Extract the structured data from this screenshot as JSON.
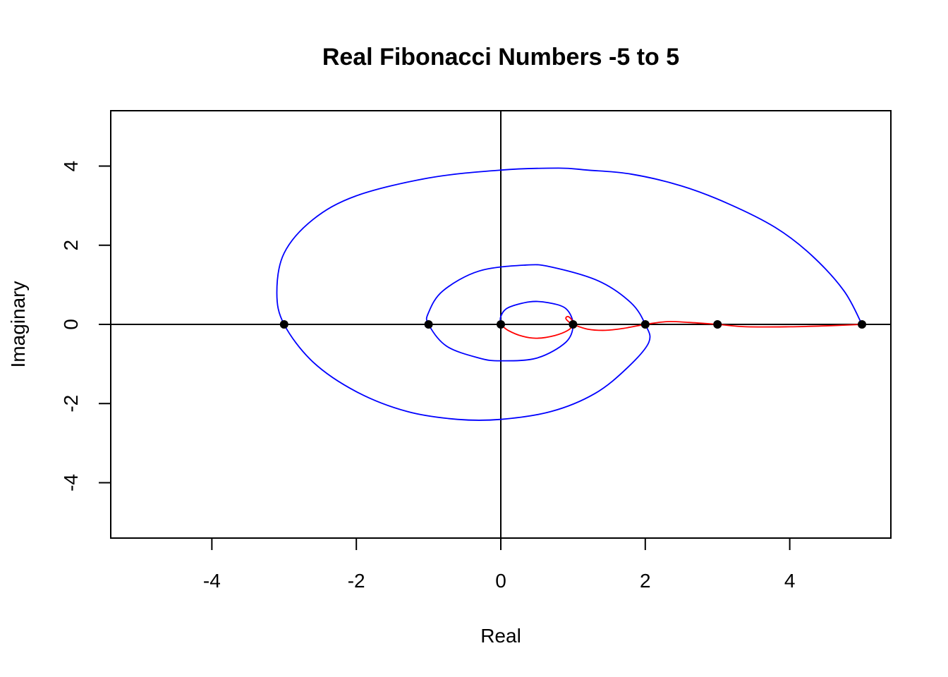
{
  "chart_data": {
    "type": "line",
    "title": "Real Fibonacci Numbers -5 to 5",
    "xlabel": "Real",
    "ylabel": "Imaginary",
    "xlim": [
      -5.4,
      5.4
    ],
    "ylim": [
      -5.4,
      5.4
    ],
    "xticks": [
      -4,
      -2,
      0,
      2,
      4
    ],
    "yticks": [
      -4,
      -2,
      0,
      2,
      4
    ],
    "grid": false,
    "legend": "none",
    "reference_lines": {
      "x": 0,
      "y": 0
    },
    "colors": {
      "blue_curve": "#0000ff",
      "red_curve": "#ff0000",
      "points": "#000000",
      "axes": "#000000"
    },
    "points": [
      {
        "x": -3,
        "y": 0
      },
      {
        "x": -1,
        "y": 0
      },
      {
        "x": 0,
        "y": 0
      },
      {
        "x": 1,
        "y": 0
      },
      {
        "x": 2,
        "y": 0
      },
      {
        "x": 3,
        "y": 0
      },
      {
        "x": 5,
        "y": 0
      }
    ],
    "series": [
      {
        "color": "#0000ff",
        "points": [
          [
            5.0,
            0.0
          ],
          [
            4.75,
            0.85
          ],
          [
            4.3,
            1.75
          ],
          [
            3.8,
            2.45
          ],
          [
            3.15,
            3.05
          ],
          [
            2.5,
            3.5
          ],
          [
            1.8,
            3.8
          ],
          [
            1.2,
            3.9
          ],
          [
            0.8,
            3.95
          ],
          [
            0.0,
            3.9
          ],
          [
            -1.0,
            3.7
          ],
          [
            -2.0,
            3.25
          ],
          [
            -2.6,
            2.65
          ],
          [
            -3.0,
            1.8
          ],
          [
            -3.1,
            0.8
          ],
          [
            -3.0,
            0.0
          ],
          [
            -2.6,
            -0.95
          ],
          [
            -2.0,
            -1.7
          ],
          [
            -1.3,
            -2.2
          ],
          [
            -0.6,
            -2.4
          ],
          [
            0.0,
            -2.4
          ],
          [
            0.7,
            -2.2
          ],
          [
            1.3,
            -1.75
          ],
          [
            1.75,
            -1.1
          ],
          [
            2.05,
            -0.45
          ],
          [
            2.0,
            0.0
          ],
          [
            1.8,
            0.55
          ],
          [
            1.35,
            1.1
          ],
          [
            0.7,
            1.45
          ],
          [
            0.35,
            1.5
          ],
          [
            -0.3,
            1.35
          ],
          [
            -0.8,
            0.85
          ],
          [
            -1.0,
            0.3
          ],
          [
            -1.0,
            0.0
          ],
          [
            -0.75,
            -0.55
          ],
          [
            -0.3,
            -0.85
          ],
          [
            0.0,
            -0.92
          ],
          [
            0.5,
            -0.85
          ],
          [
            0.9,
            -0.45
          ],
          [
            1.0,
            0.0
          ],
          [
            0.9,
            0.4
          ],
          [
            0.65,
            0.55
          ],
          [
            0.4,
            0.57
          ],
          [
            0.1,
            0.42
          ],
          [
            0.0,
            0.2
          ],
          [
            0.0,
            0.0
          ]
        ]
      },
      {
        "color": "#ff0000",
        "points": [
          [
            0.0,
            0.0
          ],
          [
            0.1,
            -0.15
          ],
          [
            0.3,
            -0.3
          ],
          [
            0.5,
            -0.35
          ],
          [
            0.75,
            -0.28
          ],
          [
            0.93,
            -0.15
          ],
          [
            1.0,
            0.0
          ],
          [
            0.98,
            0.12
          ],
          [
            0.93,
            0.2
          ],
          [
            0.9,
            0.15
          ],
          [
            0.95,
            0.05
          ],
          [
            1.0,
            0.0
          ],
          [
            1.2,
            -0.12
          ],
          [
            1.45,
            -0.15
          ],
          [
            1.7,
            -0.1
          ],
          [
            2.0,
            0.0
          ],
          [
            2.3,
            0.07
          ],
          [
            2.6,
            0.05
          ],
          [
            3.0,
            0.0
          ],
          [
            3.4,
            -0.06
          ],
          [
            4.0,
            -0.06
          ],
          [
            4.6,
            -0.03
          ],
          [
            5.0,
            0.0
          ]
        ]
      }
    ]
  }
}
